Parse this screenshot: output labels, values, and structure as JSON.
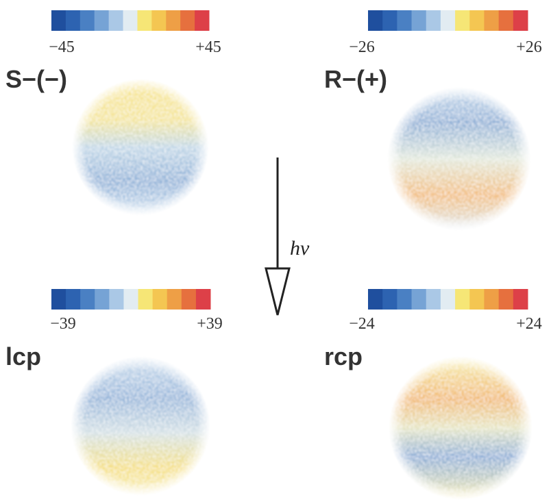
{
  "panels": [
    {
      "label": "S−(−)",
      "colorbar": {
        "min": "−45",
        "max": "+45"
      }
    },
    {
      "label": "R−(+)",
      "colorbar": {
        "min": "−26",
        "max": "+26"
      }
    },
    {
      "label": "lcp",
      "colorbar": {
        "min": "−39",
        "max": "+39"
      }
    },
    {
      "label": "rcp",
      "colorbar": {
        "min": "−24",
        "max": "+24"
      }
    }
  ],
  "arrow_label": "hν"
}
